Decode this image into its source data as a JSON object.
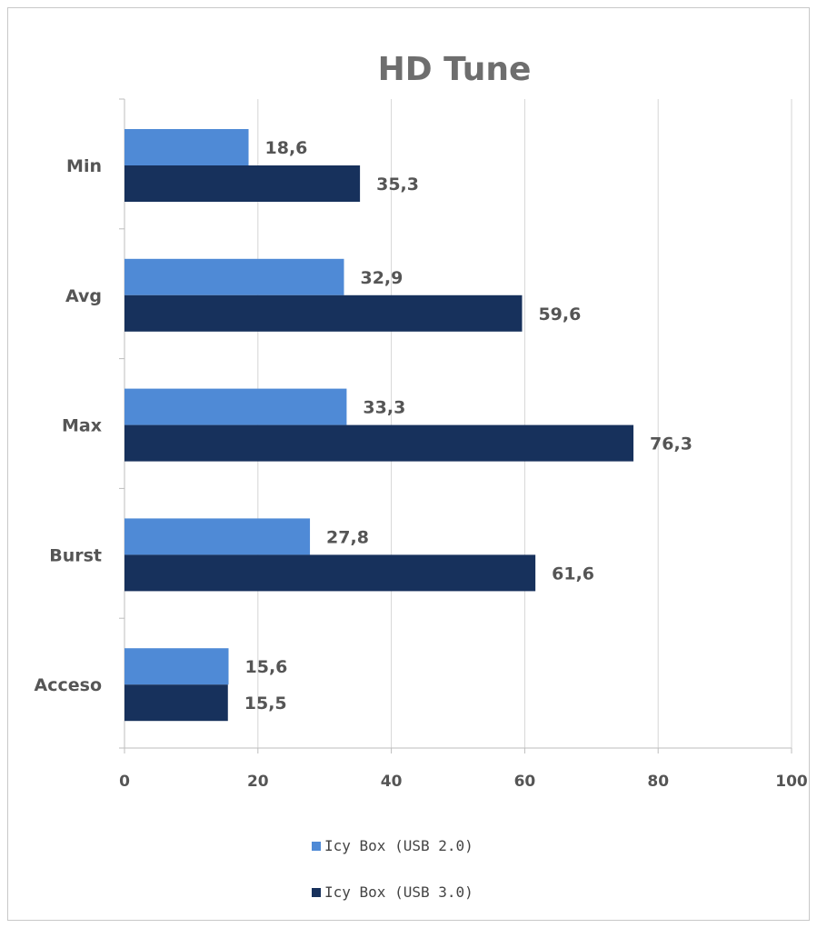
{
  "chart_data": {
    "type": "bar",
    "orientation": "horizontal",
    "title": "HD Tune",
    "categories": [
      "Min",
      "Avg",
      "Max",
      "Burst",
      "Acceso"
    ],
    "series": [
      {
        "name": "Icy Box (USB 2.0)",
        "color": "#4f8ad6",
        "values": [
          18.6,
          32.9,
          33.3,
          27.8,
          15.6
        ],
        "labels": [
          "18,6",
          "32,9",
          "33,3",
          "27,8",
          "15,6"
        ]
      },
      {
        "name": "Icy Box (USB 3.0)",
        "color": "#17315c",
        "values": [
          35.3,
          59.6,
          76.3,
          61.6,
          15.5
        ],
        "labels": [
          "35,3",
          "59,6",
          "76,3",
          "61,6",
          "15,5"
        ]
      }
    ],
    "xlim": [
      0,
      100
    ],
    "xticks": [
      0,
      20,
      40,
      60,
      80,
      100
    ],
    "xlabel": "",
    "ylabel": "",
    "grid": true,
    "legend_position": "bottom"
  }
}
